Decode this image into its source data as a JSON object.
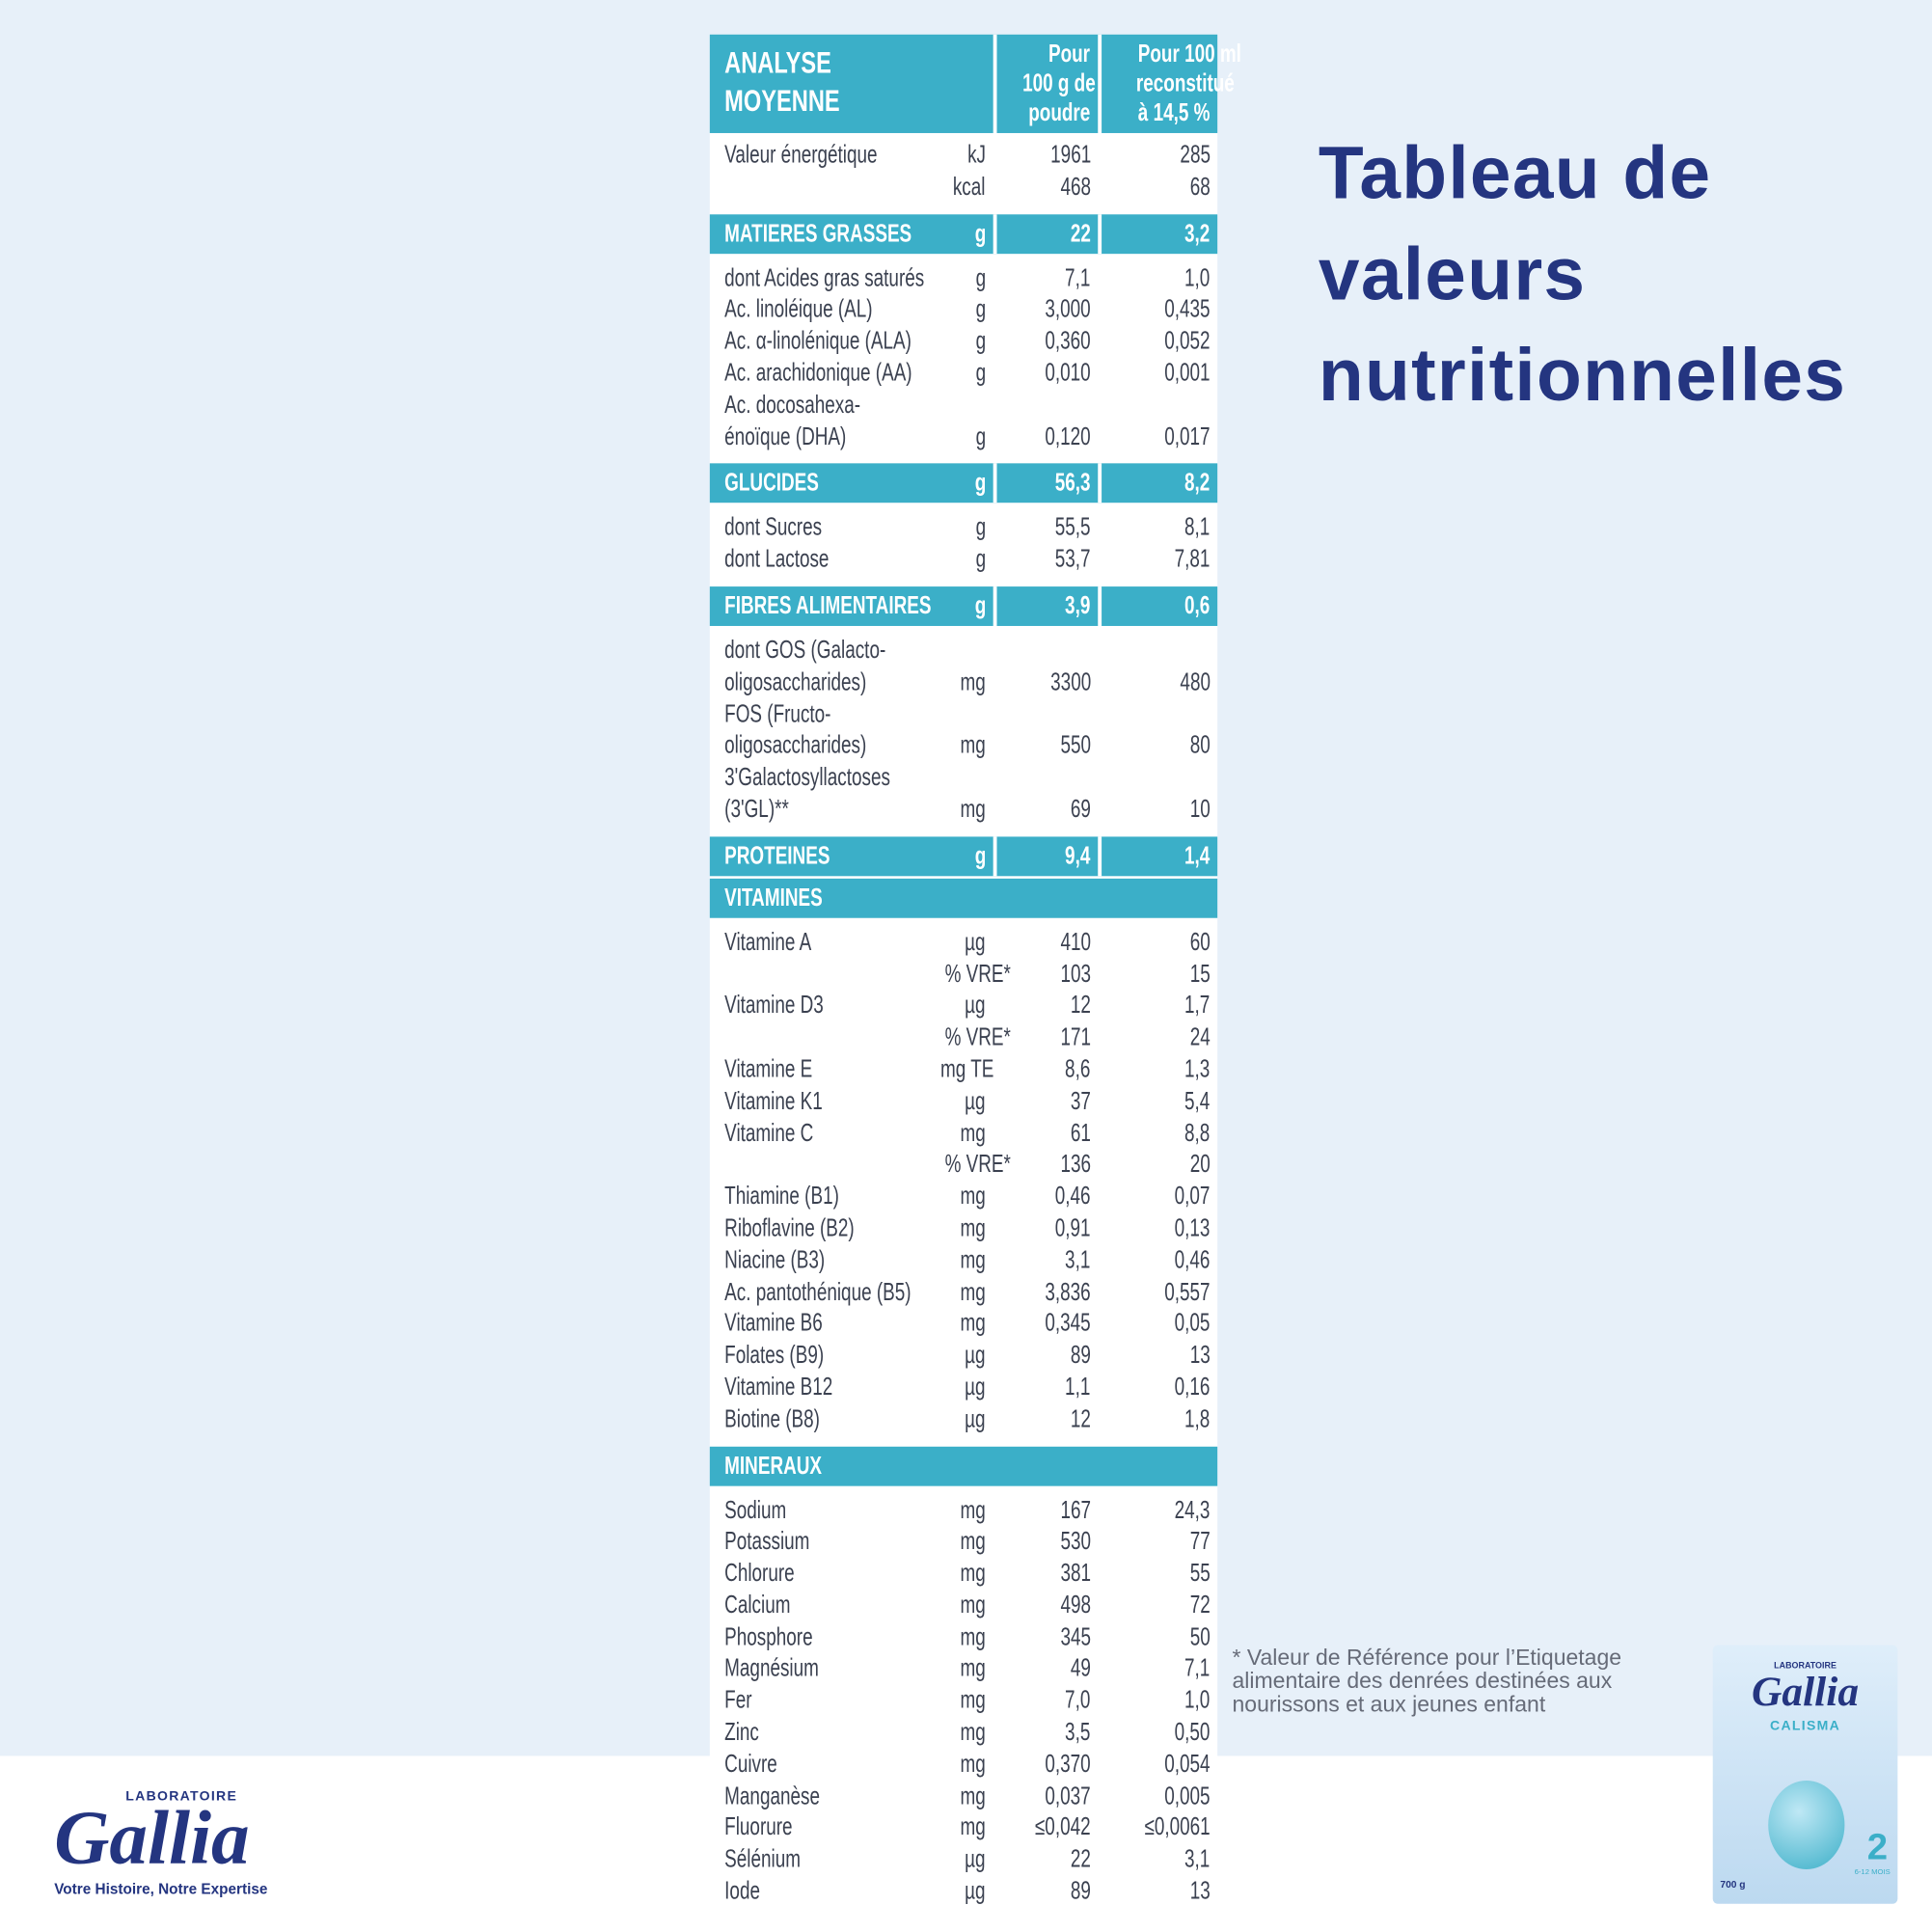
{
  "title": [
    "Tableau de",
    "valeurs",
    "nutritionnelles"
  ],
  "footnote": "* Valeur de Référence pour l’Etiquetage alimentaire des denrées destinées aux nourissons et aux jeunes enfant",
  "logo": {
    "lab": "LABORATOIRE",
    "brand": "Gallia",
    "tagline": "Votre Histoire, Notre Expertise"
  },
  "product": {
    "lab": "LABORATOIRE",
    "brand": "Gallia",
    "name": "CALISMA",
    "stage": "2",
    "age": "6-12 MOIS",
    "weight": "700 g"
  },
  "table": {
    "header": {
      "label": [
        "ANALYSE",
        "MOYENNE"
      ],
      "col1": [
        "Pour",
        "100 g de",
        "poudre"
      ],
      "col2": [
        "Pour 100 ml",
        "reconstitué",
        "à 14,5 %"
      ]
    },
    "rows": [
      {
        "label": [
          "Valeur énergétique"
        ],
        "unit": "kJ",
        "v1": "1961",
        "v2": "285"
      },
      {
        "unit": "kcal",
        "v1": "468",
        "v2": "68"
      },
      {
        "section": "MATIERES GRASSES",
        "unit": "g",
        "v1": "22",
        "v2": "3,2"
      },
      {
        "label": [
          "dont Acides gras saturés"
        ],
        "unit": "g",
        "v1": "7,1",
        "v2": "1,0"
      },
      {
        "label": [
          "Ac. linoléique (AL)"
        ],
        "unit": "g",
        "v1": "3,000",
        "v2": "0,435"
      },
      {
        "label": [
          "Ac. α-linolénique (ALA)"
        ],
        "unit": "g",
        "v1": "0,360",
        "v2": "0,052"
      },
      {
        "label": [
          "Ac. arachidonique (AA)"
        ],
        "unit": "g",
        "v1": "0,010",
        "v2": "0,001"
      },
      {
        "label": [
          "Ac. docosahexa-",
          "énoïque (DHA)"
        ],
        "unit": "g",
        "v1": "0,120",
        "v2": "0,017"
      },
      {
        "section": "GLUCIDES",
        "unit": "g",
        "v1": "56,3",
        "v2": "8,2"
      },
      {
        "label": [
          "dont Sucres"
        ],
        "unit": "g",
        "v1": "55,5",
        "v2": "8,1"
      },
      {
        "label": [
          "dont Lactose"
        ],
        "unit": "g",
        "v1": "53,7",
        "v2": "7,81"
      },
      {
        "section": "FIBRES ALIMENTAIRES",
        "unit": "g",
        "v1": "3,9",
        "v2": "0,6"
      },
      {
        "label": [
          "dont GOS (Galacto-",
          "oligosaccharides)"
        ],
        "unit": "mg",
        "v1": "3300",
        "v2": "480"
      },
      {
        "label": [
          "FOS (Fructo-",
          "oligosaccharides)"
        ],
        "unit": "mg",
        "v1": "550",
        "v2": "80"
      },
      {
        "label": [
          "3'Galactosyllactoses",
          "(3'GL)**"
        ],
        "unit": "mg",
        "v1": "69",
        "v2": "10"
      },
      {
        "section": "PROTEINES",
        "unit": "g",
        "v1": "9,4",
        "v2": "1,4"
      },
      {
        "section": "VITAMINES"
      },
      {
        "label": [
          "Vitamine A"
        ],
        "unit": "µg",
        "v1": "410",
        "v2": "60"
      },
      {
        "unit": "% VRE*",
        "v1": "103",
        "v2": "15"
      },
      {
        "label": [
          "Vitamine D3"
        ],
        "unit": "µg",
        "v1": "12",
        "v2": "1,7"
      },
      {
        "unit": "% VRE*",
        "v1": "171",
        "v2": "24"
      },
      {
        "label": [
          "Vitamine E"
        ],
        "unit": "mg TE",
        "v1": "8,6",
        "v2": "1,3"
      },
      {
        "label": [
          "Vitamine K1"
        ],
        "unit": "µg",
        "v1": "37",
        "v2": "5,4"
      },
      {
        "label": [
          "Vitamine C"
        ],
        "unit": "mg",
        "v1": "61",
        "v2": "8,8"
      },
      {
        "unit": "% VRE*",
        "v1": "136",
        "v2": "20"
      },
      {
        "label": [
          "Thiamine (B1)"
        ],
        "unit": "mg",
        "v1": "0,46",
        "v2": "0,07"
      },
      {
        "label": [
          "Riboflavine (B2)"
        ],
        "unit": "mg",
        "v1": "0,91",
        "v2": "0,13"
      },
      {
        "label": [
          "Niacine (B3)"
        ],
        "unit": "mg",
        "v1": "3,1",
        "v2": "0,46"
      },
      {
        "label": [
          "Ac. pantothénique (B5)"
        ],
        "unit": "mg",
        "v1": "3,836",
        "v2": "0,557"
      },
      {
        "label": [
          "Vitamine B6"
        ],
        "unit": "mg",
        "v1": "0,345",
        "v2": "0,05"
      },
      {
        "label": [
          "Folates (B9)"
        ],
        "unit": "µg",
        "v1": "89",
        "v2": "13"
      },
      {
        "label": [
          "Vitamine B12"
        ],
        "unit": "µg",
        "v1": "1,1",
        "v2": "0,16"
      },
      {
        "label": [
          "Biotine (B8)"
        ],
        "unit": "µg",
        "v1": "12",
        "v2": "1,8"
      },
      {
        "section": "MINERAUX"
      },
      {
        "label": [
          "Sodium"
        ],
        "unit": "mg",
        "v1": "167",
        "v2": "24,3"
      },
      {
        "label": [
          "Potassium"
        ],
        "unit": "mg",
        "v1": "530",
        "v2": "77"
      },
      {
        "label": [
          "Chlorure"
        ],
        "unit": "mg",
        "v1": "381",
        "v2": "55"
      },
      {
        "label": [
          "Calcium"
        ],
        "unit": "mg",
        "v1": "498",
        "v2": "72"
      },
      {
        "label": [
          "Phosphore"
        ],
        "unit": "mg",
        "v1": "345",
        "v2": "50"
      },
      {
        "label": [
          "Magnésium"
        ],
        "unit": "mg",
        "v1": "49",
        "v2": "7,1"
      },
      {
        "label": [
          "Fer"
        ],
        "unit": "mg",
        "v1": "7,0",
        "v2": "1,0"
      },
      {
        "label": [
          "Zinc"
        ],
        "unit": "mg",
        "v1": "3,5",
        "v2": "0,50"
      },
      {
        "label": [
          "Cuivre"
        ],
        "unit": "mg",
        "v1": "0,370",
        "v2": "0,054"
      },
      {
        "label": [
          "Manganèse"
        ],
        "unit": "mg",
        "v1": "0,037",
        "v2": "0,005"
      },
      {
        "label": [
          "Fluorure"
        ],
        "unit": "mg",
        "v1": "≤0,042",
        "v2": "≤0,0061"
      },
      {
        "label": [
          "Sélénium"
        ],
        "unit": "µg",
        "v1": "22",
        "v2": "3,1"
      },
      {
        "label": [
          "Iode"
        ],
        "unit": "µg",
        "v1": "89",
        "v2": "13"
      }
    ]
  }
}
